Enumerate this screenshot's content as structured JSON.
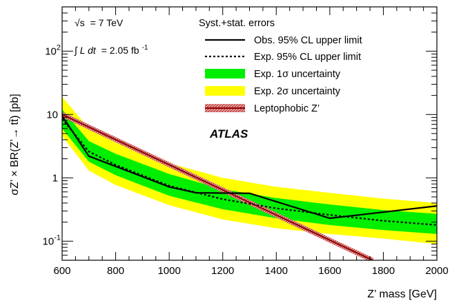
{
  "chart_data": {
    "type": "line",
    "xlabel": "Z’ mass [GeV]",
    "ylabel": "σZ’ × BR(Z’→ tt̄) [pb]",
    "xlim": [
      600,
      2000
    ],
    "ylim": [
      0.05,
      500
    ],
    "yscale": "log",
    "x_ticks": [
      600,
      800,
      1000,
      1200,
      1400,
      1600,
      1800,
      2000
    ],
    "y_ticks": [
      {
        "value": 0.1,
        "label": "10",
        "exp": "-1"
      },
      {
        "value": 1,
        "label": "1",
        "exp": ""
      },
      {
        "value": 10,
        "label": "10",
        "exp": ""
      },
      {
        "value": 100,
        "label": "10",
        "exp": "2"
      }
    ],
    "grid": false,
    "legend_placement": "top-right",
    "legend_title": "Syst.+stat. errors",
    "annotations": {
      "energy_prefix": "√s",
      "energy_value": "= 7 TeV",
      "lumi_integral": "∫ L dt",
      "lumi_value": "= 2.05 fb",
      "lumi_exp": "-1",
      "experiment": "ATLAS"
    },
    "series": [
      {
        "name": "Obs. 95% CL upper limit",
        "style": "solid",
        "color": "#000000",
        "x": [
          600,
          700,
          1000,
          1100,
          1300,
          1600,
          2000
        ],
        "y": [
          9.5,
          2.2,
          0.72,
          0.58,
          0.57,
          0.23,
          0.36
        ]
      },
      {
        "name": "Exp. 95% CL upper limit",
        "style": "dotted",
        "color": "#000000",
        "x": [
          600,
          700,
          800,
          1000,
          1200,
          1400,
          1600,
          1800,
          2000
        ],
        "y": [
          8.5,
          2.6,
          1.6,
          0.75,
          0.46,
          0.33,
          0.26,
          0.21,
          0.18
        ]
      },
      {
        "name": "Exp. 1σ uncertainty",
        "style": "band",
        "color": "#00ee00",
        "x": [
          600,
          700,
          800,
          1000,
          1200,
          1400,
          1600,
          1800,
          2000
        ],
        "low": [
          6.0,
          1.8,
          1.1,
          0.52,
          0.32,
          0.23,
          0.18,
          0.15,
          0.13
        ],
        "high": [
          12.0,
          3.8,
          2.4,
          1.15,
          0.66,
          0.48,
          0.38,
          0.31,
          0.27
        ]
      },
      {
        "name": "Exp. 2σ uncertainty",
        "style": "band",
        "color": "#ffff00",
        "x": [
          600,
          700,
          800,
          1000,
          1200,
          1400,
          1600,
          1800,
          2000
        ],
        "low": [
          4.6,
          1.3,
          0.77,
          0.37,
          0.22,
          0.16,
          0.13,
          0.11,
          0.09
        ],
        "high": [
          19.0,
          6.0,
          3.6,
          1.7,
          1.0,
          0.72,
          0.58,
          0.47,
          0.4
        ]
      },
      {
        "name": "Leptophobic Z’",
        "style": "band-line",
        "color": "#8b0000",
        "x": [
          600,
          1760
        ],
        "y": [
          10.0,
          0.05
        ]
      }
    ]
  }
}
